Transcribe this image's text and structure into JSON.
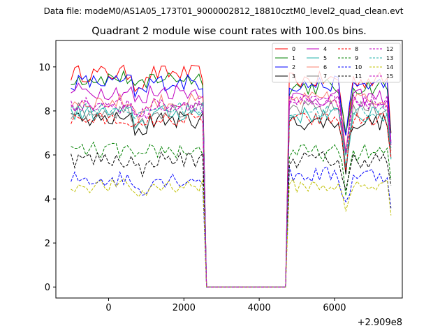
{
  "chart_data": {
    "type": "line",
    "suptitle": "Data file: modeM0/AS1A05_173T01_9000002812_18810cztM0_level2_quad_clean.evt",
    "title": "Quadrant 2 module wise count rates with 100.0s bins.",
    "xlabel": "",
    "ylabel": "",
    "x_offset_label": "+2.909e8",
    "xlim": [
      -1400,
      7800
    ],
    "ylim": [
      -0.5,
      11.2
    ],
    "xticks": [
      0,
      2000,
      4000,
      6000
    ],
    "yticks": [
      0,
      2,
      4,
      6,
      8,
      10
    ],
    "grid": false,
    "legend": {
      "placement": "top-right",
      "columns": 4
    },
    "x_start": -1000,
    "bin_size": 100,
    "gap_start": 2600,
    "gap_end": 4700,
    "x_end": 7500,
    "series": [
      {
        "name": "0",
        "color": "#ff0000",
        "dash": "solid",
        "base_before": 9.7,
        "base_after": 9.4,
        "amp": 0.3
      },
      {
        "name": "1",
        "color": "#008000",
        "dash": "solid",
        "base_before": 9.5,
        "base_after": 9.1,
        "amp": 0.3
      },
      {
        "name": "2",
        "color": "#0000ff",
        "dash": "solid",
        "base_before": 9.3,
        "base_after": 9.2,
        "amp": 0.3
      },
      {
        "name": "3",
        "color": "#000000",
        "dash": "solid",
        "base_before": 7.6,
        "base_after": 7.5,
        "amp": 0.3
      },
      {
        "name": "4",
        "color": "#c000c0",
        "dash": "solid",
        "base_before": 8.9,
        "base_after": 8.6,
        "amp": 0.3
      },
      {
        "name": "5",
        "color": "#20b2aa",
        "dash": "solid",
        "base_before": 7.9,
        "base_after": 7.8,
        "amp": 0.3
      },
      {
        "name": "6",
        "color": "#fa8072",
        "dash": "solid",
        "base_before": 8.4,
        "base_after": 8.5,
        "amp": 0.3
      },
      {
        "name": "7",
        "color": "#808080",
        "dash": "solid",
        "base_before": 8.0,
        "base_after": 8.1,
        "amp": 0.3
      },
      {
        "name": "8",
        "color": "#ff0000",
        "dash": "dashed",
        "base_before": 7.6,
        "base_after": 7.6,
        "amp": 0.25
      },
      {
        "name": "9",
        "color": "#008000",
        "dash": "dashed",
        "base_before": 6.2,
        "base_after": 6.1,
        "amp": 0.3
      },
      {
        "name": "10",
        "color": "#0000ff",
        "dash": "dashed",
        "base_before": 4.9,
        "base_after": 5.1,
        "amp": 0.3
      },
      {
        "name": "11",
        "color": "#000000",
        "dash": "dashed",
        "base_before": 5.8,
        "base_after": 5.8,
        "amp": 0.3
      },
      {
        "name": "12",
        "color": "#c000c0",
        "dash": "dashed",
        "base_before": 8.2,
        "base_after": 8.4,
        "amp": 0.25
      },
      {
        "name": "13",
        "color": "#20b2aa",
        "dash": "dashed",
        "base_before": 8.1,
        "base_after": 8.0,
        "amp": 0.25
      },
      {
        "name": "14",
        "color": "#c0c000",
        "dash": "dashed",
        "base_before": 4.6,
        "base_after": 4.6,
        "amp": 0.25
      },
      {
        "name": "15",
        "color": "#c000c0",
        "dash": "dashed",
        "base_before": 8.3,
        "base_after": 8.4,
        "amp": 0.25
      }
    ]
  }
}
